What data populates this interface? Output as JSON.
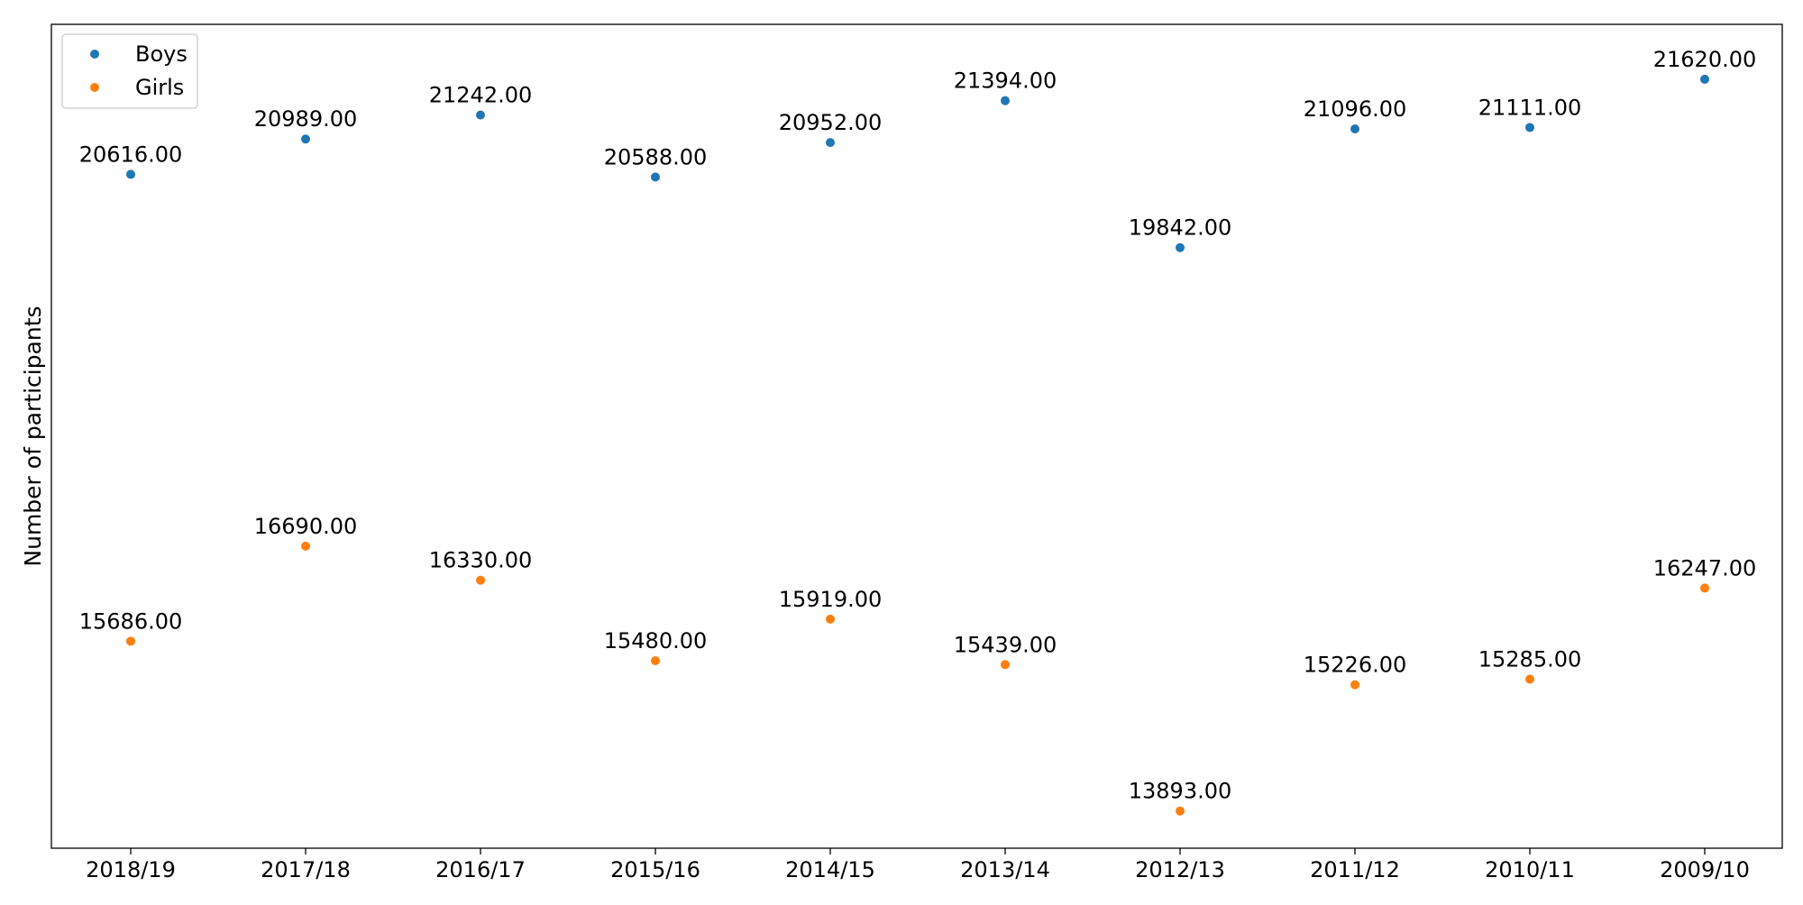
{
  "chart_data": {
    "type": "scatter",
    "title": "",
    "xlabel": "",
    "ylabel": "Number of participants",
    "categories": [
      "2018/19",
      "2017/18",
      "2016/17",
      "2015/16",
      "2014/15",
      "2013/14",
      "2012/13",
      "2011/12",
      "2010/11",
      "2009/10"
    ],
    "series": [
      {
        "name": "Boys",
        "color": "#1f77b4",
        "values": [
          20616,
          20989,
          21242,
          20588,
          20952,
          21394,
          19842,
          21096,
          21111,
          21620
        ]
      },
      {
        "name": "Girls",
        "color": "#ff7f0e",
        "values": [
          15686,
          16690,
          16330,
          15480,
          15919,
          15439,
          13893,
          15226,
          15285,
          16247
        ]
      }
    ],
    "ylim": [
      13500,
      22200
    ],
    "y_ticks_shown": false,
    "grid": false,
    "legend_position": "top-left",
    "data_label_format": "2 decimals"
  }
}
